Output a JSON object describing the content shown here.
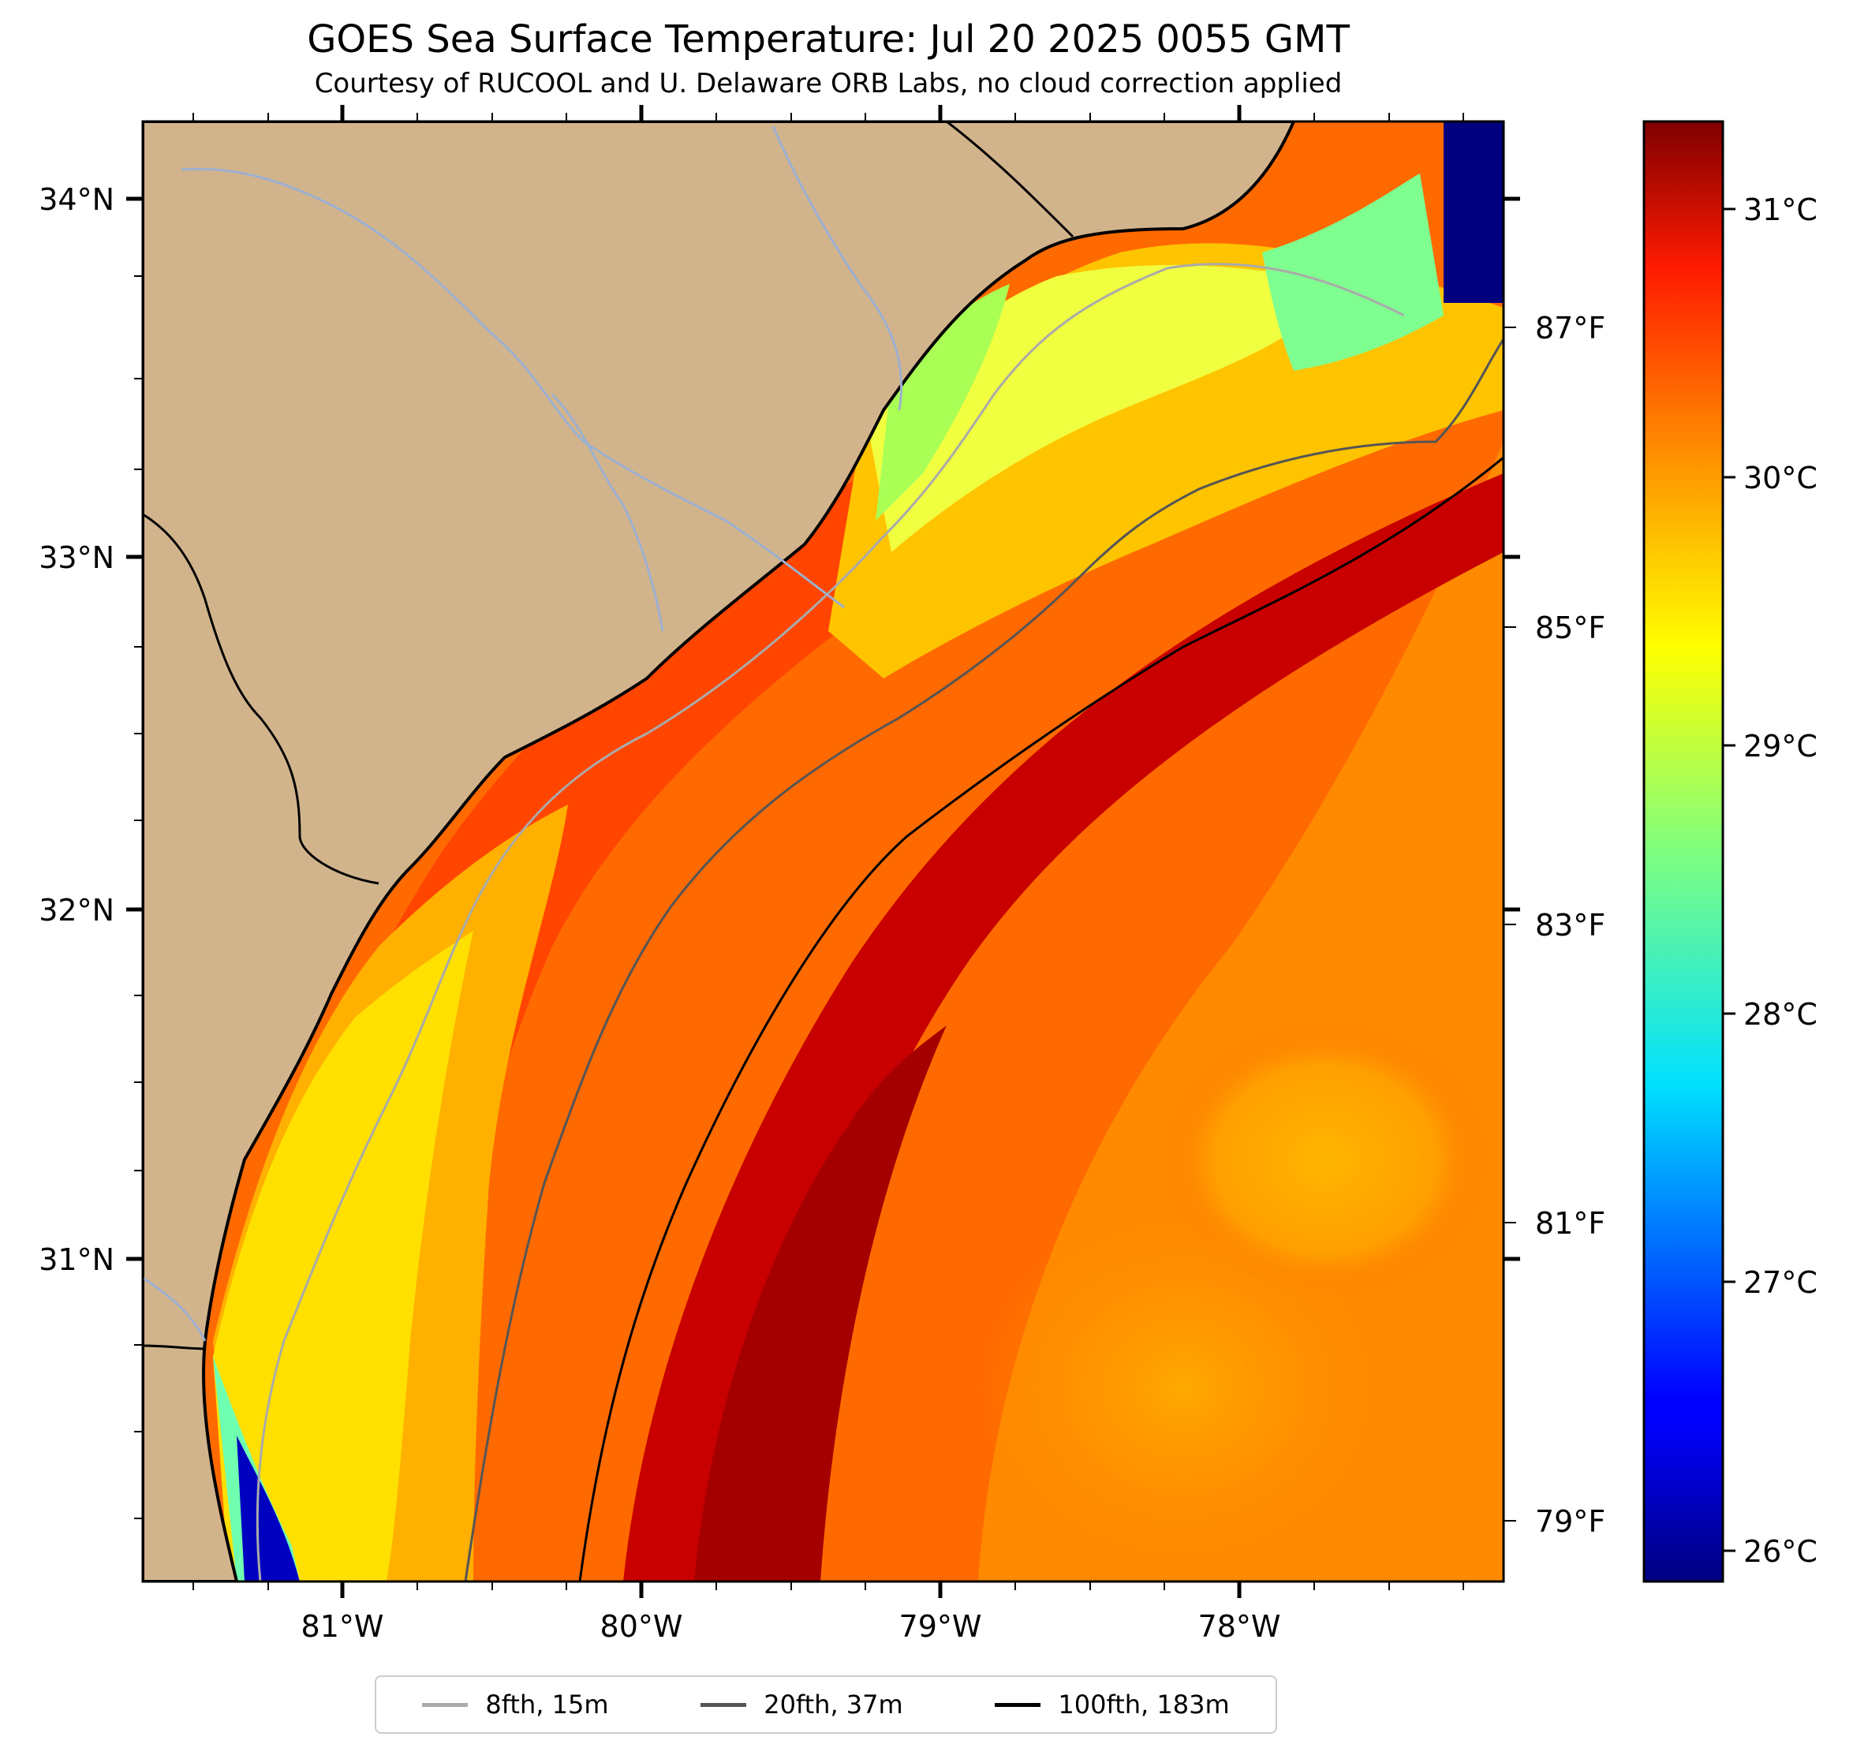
{
  "title": "GOES Sea Surface Temperature: Jul 20 2025 0055 GMT",
  "subtitle": "Courtesy of RUCOOL and U. Delaware ORB Labs, no cloud correction applied",
  "map": {
    "land_color": "#d2b48c",
    "water_color": "#a0b4d6",
    "coast_color": "#000000",
    "lat_labels": [
      "34°N",
      "33°N",
      "32°N",
      "31°N"
    ],
    "lon_labels": [
      "81°W",
      "80°W",
      "79°W",
      "78°W"
    ],
    "lon_range": [
      -81.67,
      -77.12
    ],
    "lat_range": [
      30.1,
      34.22
    ]
  },
  "fahrenheit_axis": {
    "labels": [
      "87°F",
      "85°F",
      "83°F",
      "81°F",
      "79°F"
    ]
  },
  "colorbar": {
    "labels": [
      "31°C",
      "30°C",
      "29°C",
      "28°C",
      "27°C",
      "26°C"
    ],
    "colormap": "jet",
    "range_c": [
      25.9,
      31.3
    ]
  },
  "legend": {
    "items": [
      {
        "label": "8fth, 15m",
        "color": "#aaaaaa"
      },
      {
        "label": "20fth, 37m",
        "color": "#555555"
      },
      {
        "label": "100fth, 183m",
        "color": "#000000"
      }
    ]
  }
}
